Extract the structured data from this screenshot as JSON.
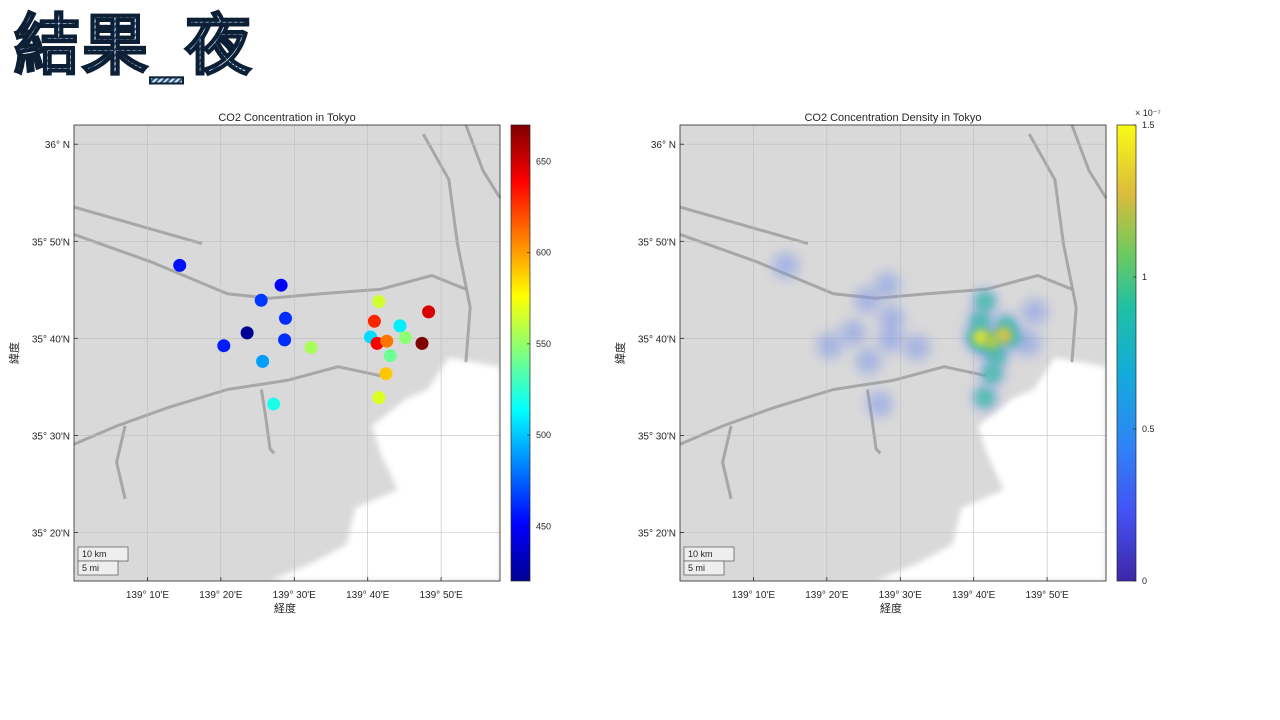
{
  "slide": {
    "title": "結果_夜"
  },
  "chart_data": [
    {
      "type": "scatter",
      "title": "CO2 Concentration in Tokyo",
      "xlabel": "経度",
      "ylabel": "緯度",
      "xlim": [
        139.0,
        139.967
      ],
      "ylim": [
        35.25,
        36.033
      ],
      "x_ticks": [
        139.1667,
        139.3333,
        139.5,
        139.6667,
        139.8333
      ],
      "x_tick_labels": [
        "139° 10'E",
        "139° 20'E",
        "139° 30'E",
        "139° 40'E",
        "139° 50'E"
      ],
      "y_ticks": [
        35.3333,
        35.5,
        35.6667,
        35.8333,
        36.0
      ],
      "y_tick_labels": [
        "35° 20'N",
        "35° 30'N",
        "35° 40'N",
        "35° 50'N",
        "36°  N"
      ],
      "grid": true,
      "colormap": "jet",
      "clim": [
        420,
        670
      ],
      "colorbar_ticks": [
        450,
        500,
        550,
        600,
        650
      ],
      "scalebar": [
        "10 km",
        "5 mi"
      ],
      "points": [
        {
          "lon": 139.24,
          "lat": 35.792,
          "co2": 455
        },
        {
          "lon": 139.34,
          "lat": 35.654,
          "co2": 458
        },
        {
          "lon": 139.393,
          "lat": 35.676,
          "co2": 425
        },
        {
          "lon": 139.425,
          "lat": 35.732,
          "co2": 465
        },
        {
          "lon": 139.47,
          "lat": 35.758,
          "co2": 450
        },
        {
          "lon": 139.48,
          "lat": 35.701,
          "co2": 462
        },
        {
          "lon": 139.478,
          "lat": 35.664,
          "co2": 462
        },
        {
          "lon": 139.428,
          "lat": 35.627,
          "co2": 490
        },
        {
          "lon": 139.453,
          "lat": 35.554,
          "co2": 520
        },
        {
          "lon": 139.538,
          "lat": 35.651,
          "co2": 555
        },
        {
          "lon": 139.682,
          "lat": 35.696,
          "co2": 630
        },
        {
          "lon": 139.692,
          "lat": 35.73,
          "co2": 565
        },
        {
          "lon": 139.673,
          "lat": 35.669,
          "co2": 505
        },
        {
          "lon": 139.688,
          "lat": 35.658,
          "co2": 640
        },
        {
          "lon": 139.71,
          "lat": 35.662,
          "co2": 610
        },
        {
          "lon": 139.718,
          "lat": 35.637,
          "co2": 540
        },
        {
          "lon": 139.708,
          "lat": 35.606,
          "co2": 590
        },
        {
          "lon": 139.692,
          "lat": 35.565,
          "co2": 568
        },
        {
          "lon": 139.74,
          "lat": 35.688,
          "co2": 510
        },
        {
          "lon": 139.752,
          "lat": 35.668,
          "co2": 548
        },
        {
          "lon": 139.79,
          "lat": 35.658,
          "co2": 670
        },
        {
          "lon": 139.805,
          "lat": 35.712,
          "co2": 648
        }
      ]
    },
    {
      "type": "heatmap",
      "title": "CO2 Concentration Density in Tokyo",
      "xlabel": "経度",
      "ylabel": "緯度",
      "xlim": [
        139.0,
        139.967
      ],
      "ylim": [
        35.25,
        36.033
      ],
      "x_ticks": [
        139.1667,
        139.3333,
        139.5,
        139.6667,
        139.8333
      ],
      "x_tick_labels": [
        "139° 10'E",
        "139° 20'E",
        "139° 30'E",
        "139° 40'E",
        "139° 50'E"
      ],
      "y_ticks": [
        35.3333,
        35.5,
        35.6667,
        35.8333,
        36.0
      ],
      "y_tick_labels": [
        "35° 20'N",
        "35° 30'N",
        "35° 40'N",
        "35° 50'N",
        "36°  N"
      ],
      "grid": true,
      "colormap": "parula",
      "clim": [
        0,
        1.5
      ],
      "colorbar_ticks": [
        0,
        0.5,
        1,
        1.5
      ],
      "colorbar_tick_labels": [
        "0",
        "0.5",
        "1",
        "1.5"
      ],
      "colorbar_exponent": "× 10⁻⁷",
      "scalebar": [
        "10 km",
        "5 mi"
      ]
    }
  ]
}
